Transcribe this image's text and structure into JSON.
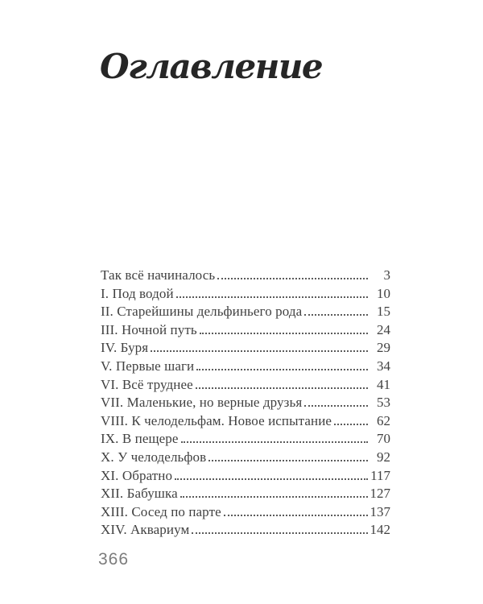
{
  "page": {
    "title": "Оглавление",
    "folio": "366"
  },
  "toc": {
    "entries": [
      {
        "label": "Так всё начиналось",
        "page": "3"
      },
      {
        "label": "I. Под водой",
        "page": "10"
      },
      {
        "label": "II. Старейшины дельфиньего рода",
        "page": "15"
      },
      {
        "label": "III. Ночной путь",
        "page": "24"
      },
      {
        "label": "IV. Буря",
        "page": "29"
      },
      {
        "label": "V. Первые шаги",
        "page": "34"
      },
      {
        "label": "VI. Всё труднее",
        "page": "41"
      },
      {
        "label": "VII. Маленькие, но верные друзья",
        "page": "53"
      },
      {
        "label": "VIII. К челодельфам. Новое испытание",
        "page": "62"
      },
      {
        "label": "IX. В пещере",
        "page": "70"
      },
      {
        "label": "X. У челодельфов",
        "page": "92"
      },
      {
        "label": "XI. Обратно",
        "page": "117"
      },
      {
        "label": "XII. Бабушка",
        "page": "127"
      },
      {
        "label": "XIII. Сосед по парте",
        "page": "137"
      },
      {
        "label": "XIV. Аквариум",
        "page": "142"
      }
    ]
  }
}
